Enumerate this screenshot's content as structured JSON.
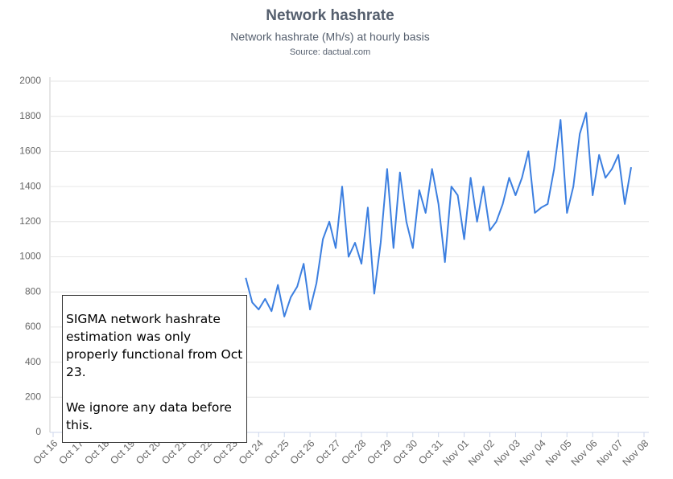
{
  "chart_data": {
    "type": "line",
    "title": "Network hashrate",
    "subtitle": "Network hashrate (Mh/s) at hourly basis",
    "source": "Source: dactual.com",
    "annotation": [
      "SIGMA network hashrate estimation was only properly functional from Oct 23.",
      "We ignore any data before this."
    ],
    "x": [
      7.5,
      7.75,
      8,
      8.25,
      8.5,
      8.75,
      9,
      9.25,
      9.5,
      9.75,
      10,
      10.25,
      10.5,
      10.75,
      11,
      11.25,
      11.5,
      11.75,
      12,
      12.25,
      12.5,
      12.75,
      13,
      13.25,
      13.5,
      13.75,
      14,
      14.25,
      14.5,
      14.75,
      15,
      15.25,
      15.5,
      15.75,
      16,
      16.25,
      16.5,
      16.75,
      17,
      17.25,
      17.5,
      17.75,
      18,
      18.25,
      18.5,
      18.75,
      19,
      19.25,
      19.5,
      19.75,
      20,
      20.25,
      20.5,
      20.75,
      21,
      21.25,
      21.5,
      21.75,
      22,
      22.25,
      22.5
    ],
    "series": [
      {
        "name": "Network hashrate",
        "color": "#3c7fe0",
        "values": [
          880,
          740,
          700,
          760,
          690,
          840,
          660,
          770,
          830,
          960,
          700,
          850,
          1100,
          1200,
          1050,
          1400,
          1000,
          1080,
          960,
          1280,
          790,
          1080,
          1500,
          1050,
          1480,
          1200,
          1050,
          1380,
          1250,
          1500,
          1300,
          970,
          1400,
          1350,
          1100,
          1450,
          1200,
          1400,
          1150,
          1200,
          1300,
          1450,
          1350,
          1450,
          1600,
          1250,
          1280,
          1300,
          1500,
          1780,
          1250,
          1400,
          1700,
          1820,
          1350,
          1580,
          1450,
          1500,
          1580,
          1300,
          1510
        ]
      }
    ],
    "xlim": [
      0,
      23
    ],
    "xticks": [
      {
        "value": 0,
        "label": "Oct 16"
      },
      {
        "value": 1,
        "label": "Oct 17"
      },
      {
        "value": 2,
        "label": "Oct 18"
      },
      {
        "value": 3,
        "label": "Oct 19"
      },
      {
        "value": 4,
        "label": "Oct 20"
      },
      {
        "value": 5,
        "label": "Oct 21"
      },
      {
        "value": 6,
        "label": "Oct 22"
      },
      {
        "value": 7,
        "label": "Oct 23"
      },
      {
        "value": 8,
        "label": "Oct 24"
      },
      {
        "value": 9,
        "label": "Oct 25"
      },
      {
        "value": 10,
        "label": "Oct 26"
      },
      {
        "value": 11,
        "label": "Oct 27"
      },
      {
        "value": 12,
        "label": "Oct 28"
      },
      {
        "value": 13,
        "label": "Oct 29"
      },
      {
        "value": 14,
        "label": "Oct 30"
      },
      {
        "value": 15,
        "label": "Oct 31"
      },
      {
        "value": 16,
        "label": "Nov 01"
      },
      {
        "value": 17,
        "label": "Nov 02"
      },
      {
        "value": 18,
        "label": "Nov 03"
      },
      {
        "value": 19,
        "label": "Nov 04"
      },
      {
        "value": 20,
        "label": "Nov 05"
      },
      {
        "value": 21,
        "label": "Nov 06"
      },
      {
        "value": 22,
        "label": "Nov 07"
      },
      {
        "value": 23,
        "label": "Nov 08"
      }
    ],
    "ylim": [
      0,
      2000
    ],
    "yticks": [
      0,
      200,
      400,
      600,
      800,
      1000,
      1200,
      1400,
      1600,
      1800,
      2000
    ],
    "grid": true
  }
}
